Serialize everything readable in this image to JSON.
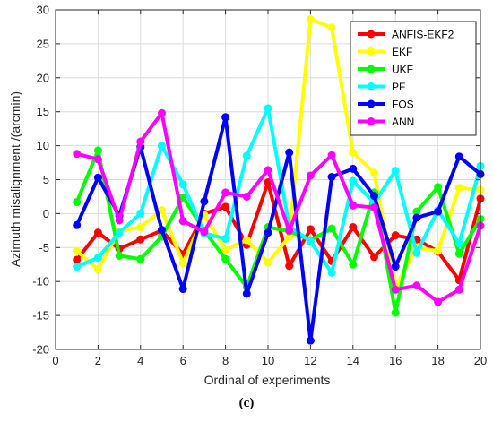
{
  "chart_data": {
    "type": "line",
    "xlabel": "Ordinal of experiments",
    "ylabel": "Azimuth misalignment /(arcmin)",
    "xlim": [
      0,
      20
    ],
    "ylim": [
      -20,
      30
    ],
    "xticks": [
      0,
      2,
      4,
      6,
      8,
      10,
      12,
      14,
      16,
      18,
      20
    ],
    "yticks": [
      -20,
      -15,
      -10,
      -5,
      0,
      5,
      10,
      15,
      20,
      25,
      30
    ],
    "grid": true,
    "legend_position": "top-right",
    "x": [
      1,
      2,
      3,
      4,
      5,
      6,
      7,
      8,
      9,
      10,
      11,
      12,
      13,
      14,
      15,
      16,
      17,
      18,
      19,
      20
    ],
    "series": [
      {
        "name": "ANFIS-EKF2",
        "color": "#ff0000",
        "values": [
          -6.8,
          -2.8,
          -5.2,
          -3.8,
          -2.5,
          -6.0,
          0.0,
          1.0,
          -4.6,
          4.6,
          -7.7,
          -2.3,
          -7.0,
          -2.0,
          -6.4,
          -3.2,
          -3.8,
          -5.6,
          -9.8,
          2.2
        ]
      },
      {
        "name": "EKF",
        "color": "#ffff00",
        "values": [
          -5.5,
          -8.2,
          -2.6,
          -2.0,
          0.5,
          -7.3,
          -0.2,
          -5.3,
          -3.9,
          -7.2,
          -3.4,
          28.6,
          27.4,
          9.0,
          6.0,
          -10.8,
          -5.0,
          -5.5,
          3.8,
          3.5
        ]
      },
      {
        "name": "UKF",
        "color": "#00ff00",
        "values": [
          1.7,
          9.3,
          -6.2,
          -6.7,
          -3.4,
          2.4,
          -2.5,
          -6.7,
          -10.8,
          -2.0,
          -2.6,
          -3.9,
          -2.2,
          -7.5,
          3.1,
          -14.6,
          0.3,
          3.9,
          -5.9,
          -0.8
        ]
      },
      {
        "name": "PF",
        "color": "#00ffff",
        "values": [
          -7.8,
          -6.5,
          -2.8,
          0.0,
          10.0,
          4.3,
          -2.9,
          -3.7,
          8.5,
          15.5,
          -1.8,
          -4.1,
          -8.7,
          4.8,
          1.6,
          6.3,
          -5.8,
          0.5,
          -4.4,
          7.0
        ]
      },
      {
        "name": "FOS",
        "color": "#0000ff",
        "values": [
          -1.7,
          5.3,
          -0.3,
          9.8,
          -2.4,
          -11.1,
          1.8,
          14.2,
          -11.8,
          -2.8,
          9.0,
          -18.7,
          5.4,
          6.6,
          2.6,
          -7.8,
          -0.6,
          0.3,
          8.4,
          5.8
        ]
      },
      {
        "name": "ANN",
        "color": "#ff00ff",
        "values": [
          8.8,
          8.0,
          -1.0,
          10.6,
          14.8,
          -1.1,
          -2.7,
          3.1,
          2.5,
          6.4,
          -2.5,
          5.6,
          8.6,
          1.2,
          0.9,
          -11.2,
          -10.6,
          -13.0,
          -11.2,
          -1.8
        ]
      }
    ]
  },
  "caption": "(c)"
}
